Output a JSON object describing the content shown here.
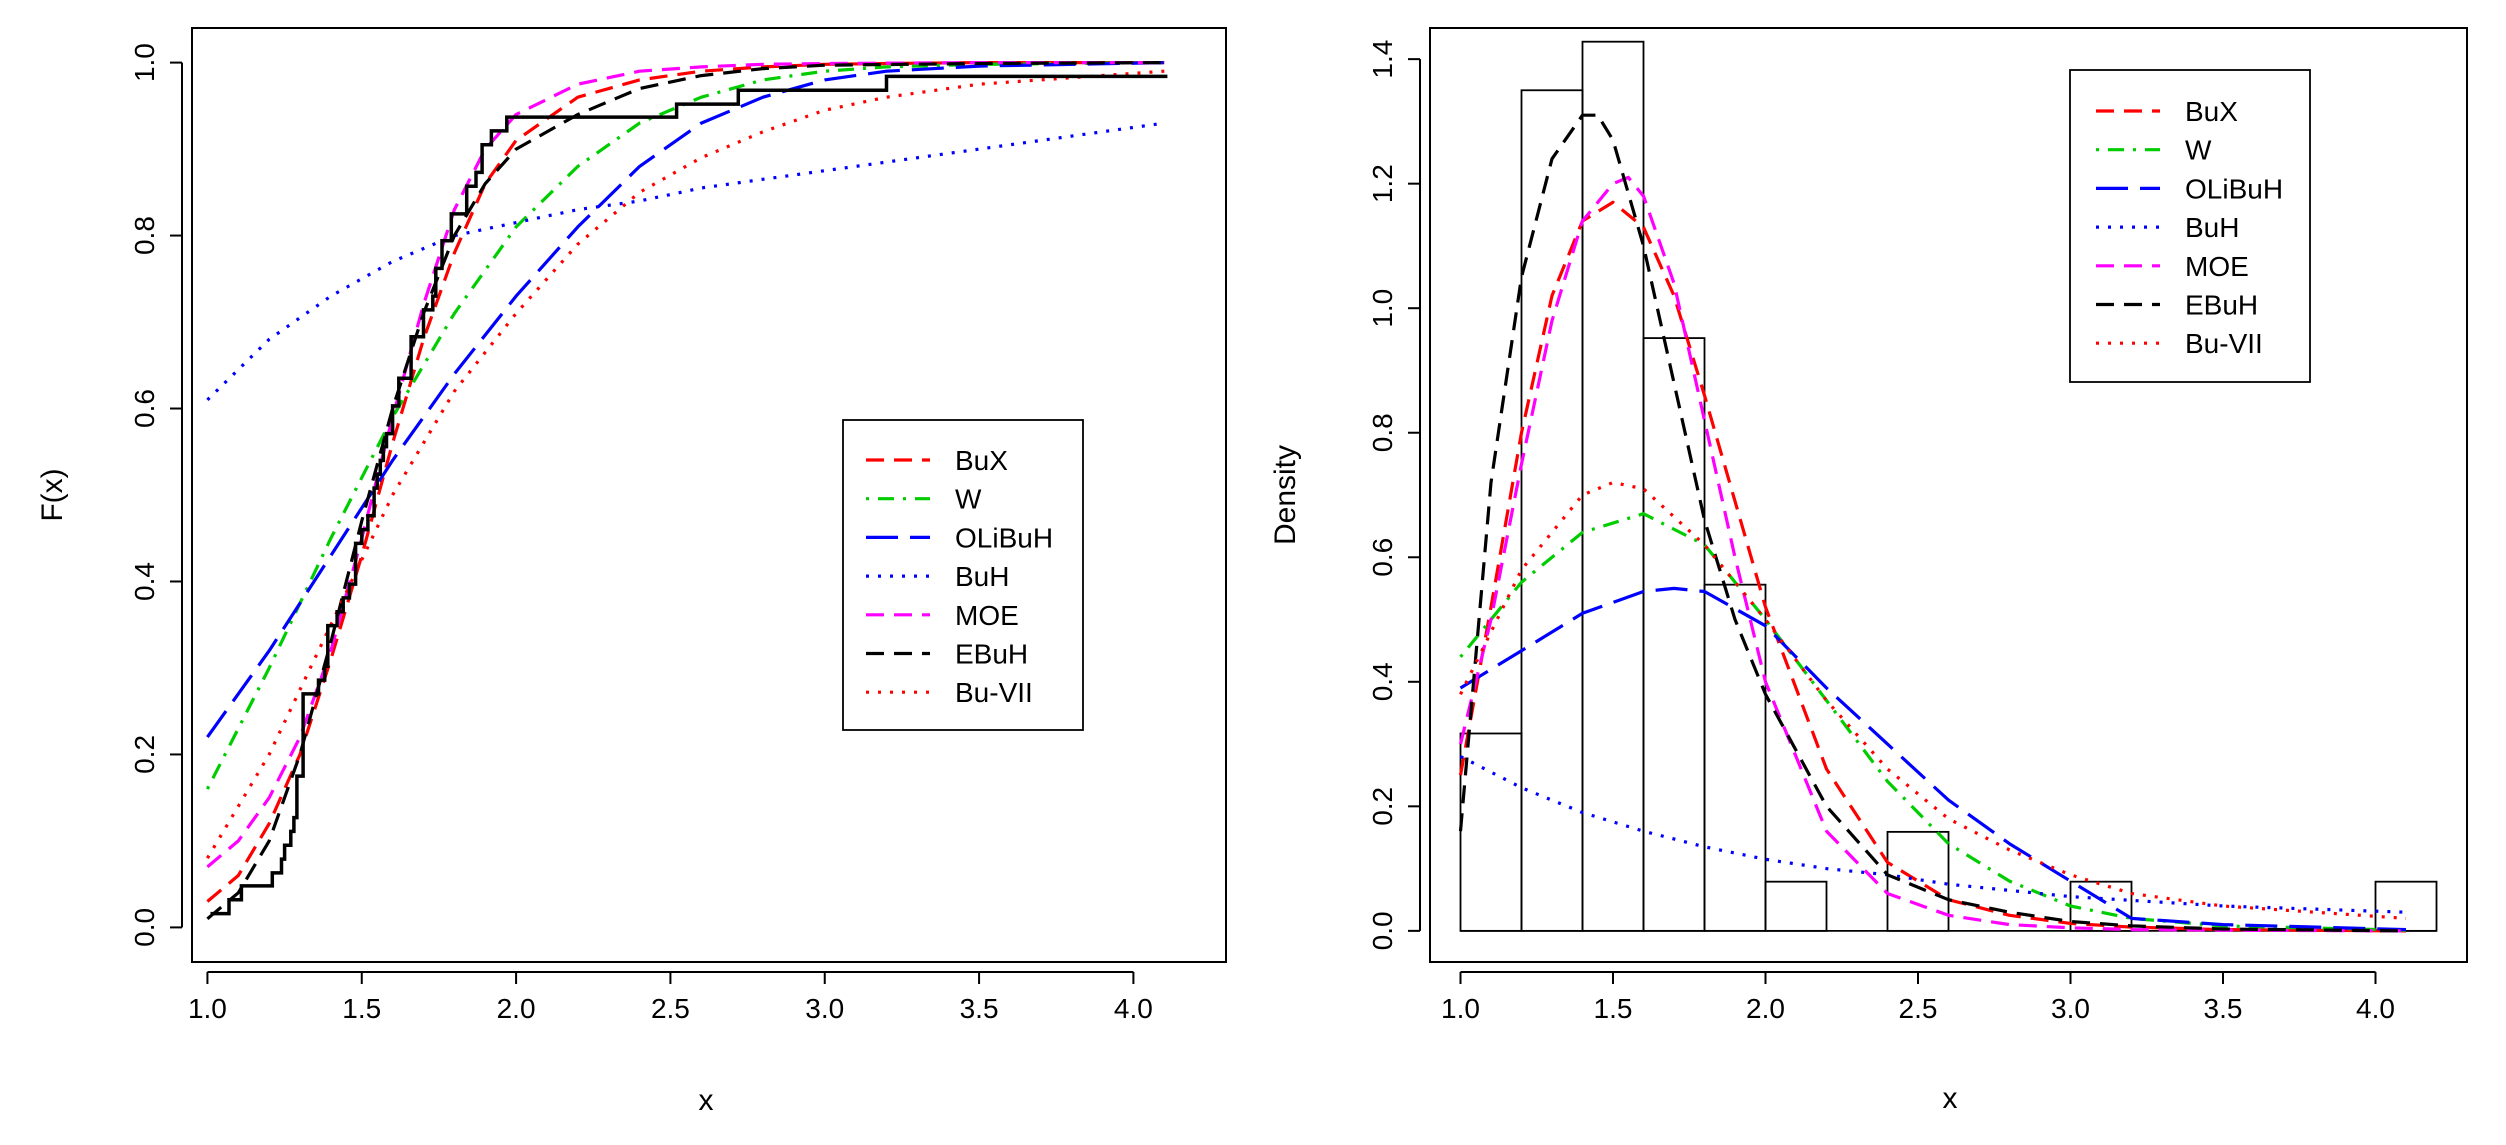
{
  "chart_data": [
    {
      "type": "line",
      "xlabel": "x",
      "ylabel": "F(x)",
      "xlim": [
        0.95,
        4.3
      ],
      "ylim": [
        -0.04,
        1.04
      ],
      "xticks": [
        "1.0",
        "1.5",
        "2.0",
        "2.5",
        "3.0",
        "3.5",
        "4.0"
      ],
      "yticks": [
        "0.0",
        "0.2",
        "0.4",
        "0.6",
        "0.8",
        "1.0"
      ],
      "legend_position": "right",
      "empirical_cdf": {
        "x": [
          1.01,
          1.07,
          1.11,
          1.21,
          1.24,
          1.25,
          1.27,
          1.28,
          1.29,
          1.31,
          1.36,
          1.38,
          1.39,
          1.42,
          1.44,
          1.46,
          1.48,
          1.5,
          1.52,
          1.54,
          1.55,
          1.56,
          1.57,
          1.58,
          1.6,
          1.62,
          1.66,
          1.7,
          1.73,
          1.74,
          1.76,
          1.79,
          1.84,
          1.87,
          1.89,
          1.92,
          1.97,
          2.01,
          2.52,
          2.72,
          3.2,
          4.11
        ],
        "y": [
          0.016,
          0.032,
          0.048,
          0.063,
          0.079,
          0.095,
          0.111,
          0.127,
          0.175,
          0.27,
          0.286,
          0.302,
          0.349,
          0.365,
          0.381,
          0.397,
          0.444,
          0.46,
          0.476,
          0.508,
          0.524,
          0.54,
          0.556,
          0.571,
          0.603,
          0.635,
          0.683,
          0.714,
          0.73,
          0.762,
          0.794,
          0.825,
          0.857,
          0.873,
          0.905,
          0.921,
          0.937,
          0.937,
          0.952,
          0.968,
          0.984,
          0.984
        ]
      },
      "series": [
        {
          "name": "BuX",
          "color": "#ff0000",
          "dash": "dashed",
          "x": [
            1.0,
            1.1,
            1.2,
            1.3,
            1.4,
            1.5,
            1.6,
            1.7,
            1.8,
            1.9,
            2.0,
            2.2,
            2.4,
            2.6,
            2.8,
            3.0,
            3.2,
            3.5,
            4.1
          ],
          "y": [
            0.03,
            0.06,
            0.12,
            0.2,
            0.31,
            0.43,
            0.56,
            0.68,
            0.78,
            0.86,
            0.91,
            0.96,
            0.98,
            0.99,
            0.995,
            0.998,
            0.999,
            1.0,
            1.0
          ]
        },
        {
          "name": "W",
          "color": "#00cd00",
          "dash": "dotdash",
          "x": [
            1.0,
            1.2,
            1.4,
            1.6,
            1.8,
            2.0,
            2.2,
            2.4,
            2.6,
            2.8,
            3.0,
            3.2,
            3.5,
            4.1
          ],
          "y": [
            0.16,
            0.3,
            0.45,
            0.59,
            0.71,
            0.81,
            0.88,
            0.93,
            0.96,
            0.98,
            0.99,
            0.995,
            0.998,
            1.0
          ]
        },
        {
          "name": "OLiBuH",
          "color": "#0000ff",
          "dash": "longdash",
          "x": [
            1.0,
            1.2,
            1.4,
            1.6,
            1.8,
            2.0,
            2.2,
            2.4,
            2.6,
            2.8,
            3.0,
            3.2,
            3.5,
            4.1
          ],
          "y": [
            0.22,
            0.32,
            0.43,
            0.54,
            0.64,
            0.73,
            0.81,
            0.88,
            0.93,
            0.96,
            0.98,
            0.99,
            0.996,
            1.0
          ]
        },
        {
          "name": "BuH",
          "color": "#0000ff",
          "dash": "dotted",
          "x": [
            1.0,
            1.2,
            1.4,
            1.6,
            1.8,
            2.0,
            2.2,
            2.4,
            2.6,
            2.8,
            3.0,
            3.5,
            4.1
          ],
          "y": [
            0.61,
            0.68,
            0.73,
            0.77,
            0.8,
            0.815,
            0.83,
            0.84,
            0.855,
            0.865,
            0.875,
            0.9,
            0.93
          ]
        },
        {
          "name": "MOE",
          "color": "#ff00ff",
          "dash": "dashed",
          "x": [
            1.0,
            1.1,
            1.2,
            1.3,
            1.4,
            1.5,
            1.6,
            1.7,
            1.8,
            1.9,
            2.0,
            2.2,
            2.4,
            2.6,
            2.8,
            3.0,
            3.5,
            4.1
          ],
          "y": [
            0.07,
            0.1,
            0.15,
            0.22,
            0.32,
            0.45,
            0.59,
            0.72,
            0.83,
            0.9,
            0.94,
            0.975,
            0.99,
            0.995,
            0.998,
            0.999,
            1.0,
            1.0
          ]
        },
        {
          "name": "EBuH",
          "color": "#000000",
          "dash": "dashed",
          "x": [
            1.0,
            1.1,
            1.2,
            1.3,
            1.4,
            1.5,
            1.6,
            1.7,
            1.8,
            1.9,
            2.0,
            2.2,
            2.4,
            2.6,
            2.8,
            3.0,
            3.5,
            4.1
          ],
          "y": [
            0.01,
            0.04,
            0.1,
            0.2,
            0.33,
            0.47,
            0.6,
            0.71,
            0.8,
            0.86,
            0.9,
            0.94,
            0.97,
            0.985,
            0.993,
            0.997,
            0.999,
            1.0
          ]
        },
        {
          "name": "Bu-VII",
          "color": "#ff0000",
          "dash": "dotted",
          "x": [
            1.0,
            1.2,
            1.4,
            1.6,
            1.8,
            2.0,
            2.2,
            2.4,
            2.6,
            2.8,
            3.0,
            3.2,
            3.5,
            4.1
          ],
          "y": [
            0.08,
            0.2,
            0.35,
            0.5,
            0.62,
            0.71,
            0.79,
            0.85,
            0.89,
            0.92,
            0.945,
            0.96,
            0.975,
            0.99
          ]
        }
      ]
    },
    {
      "type": "line",
      "xlabel": "x",
      "ylabel": "Density",
      "xlim": [
        0.9,
        4.3
      ],
      "ylim": [
        -0.05,
        1.45
      ],
      "xticks": [
        "1.0",
        "1.5",
        "2.0",
        "2.5",
        "3.0",
        "3.5",
        "4.0"
      ],
      "yticks": [
        "0.0",
        "0.2",
        "0.4",
        "0.6",
        "0.8",
        "1.0",
        "1.2",
        "1.4"
      ],
      "legend_position": "top-right",
      "histogram": {
        "bin_edges": [
          1.0,
          1.2,
          1.4,
          1.6,
          1.8,
          2.0,
          2.2,
          2.4,
          2.6,
          2.8,
          3.0,
          3.2,
          3.4,
          3.6,
          3.8,
          4.0,
          4.2
        ],
        "density": [
          0.317,
          1.35,
          1.428,
          0.952,
          0.556,
          0.079,
          0.0,
          0.159,
          0.0,
          0.0,
          0.079,
          0.0,
          0.0,
          0.0,
          0.0,
          0.079
        ]
      },
      "series": [
        {
          "name": "BuX",
          "color": "#ff0000",
          "dash": "dashed",
          "x": [
            1.0,
            1.1,
            1.2,
            1.3,
            1.4,
            1.5,
            1.6,
            1.7,
            1.8,
            1.9,
            2.0,
            2.2,
            2.4,
            2.6,
            2.8,
            3.0,
            3.2,
            3.5,
            4.1
          ],
          "y": [
            0.25,
            0.52,
            0.8,
            1.02,
            1.14,
            1.17,
            1.13,
            1.02,
            0.86,
            0.69,
            0.52,
            0.26,
            0.11,
            0.05,
            0.025,
            0.012,
            0.006,
            0.002,
            0.0
          ]
        },
        {
          "name": "W",
          "color": "#00cd00",
          "dash": "dotdash",
          "x": [
            1.0,
            1.2,
            1.4,
            1.6,
            1.8,
            2.0,
            2.2,
            2.4,
            2.6,
            2.8,
            3.0,
            3.2,
            3.5,
            4.1
          ],
          "y": [
            0.44,
            0.56,
            0.64,
            0.67,
            0.62,
            0.5,
            0.37,
            0.24,
            0.14,
            0.08,
            0.04,
            0.02,
            0.008,
            0.001
          ]
        },
        {
          "name": "OLiBuH",
          "color": "#0000ff",
          "dash": "longdash",
          "x": [
            1.0,
            1.2,
            1.4,
            1.6,
            1.7,
            1.8,
            2.0,
            2.2,
            2.4,
            2.6,
            2.8,
            3.0,
            3.2,
            3.5,
            4.1
          ],
          "y": [
            0.39,
            0.45,
            0.51,
            0.545,
            0.55,
            0.545,
            0.49,
            0.39,
            0.3,
            0.21,
            0.14,
            0.08,
            0.02,
            0.01,
            0.002
          ]
        },
        {
          "name": "BuH",
          "color": "#0000ff",
          "dash": "dotted",
          "x": [
            1.0,
            1.2,
            1.4,
            1.6,
            1.8,
            2.0,
            2.2,
            2.4,
            2.6,
            2.8,
            3.0,
            3.5,
            4.1
          ],
          "y": [
            0.28,
            0.23,
            0.19,
            0.16,
            0.135,
            0.115,
            0.1,
            0.09,
            0.075,
            0.065,
            0.055,
            0.04,
            0.03
          ]
        },
        {
          "name": "MOE",
          "color": "#ff00ff",
          "dash": "dashed",
          "x": [
            1.0,
            1.1,
            1.2,
            1.3,
            1.4,
            1.5,
            1.55,
            1.6,
            1.7,
            1.8,
            1.9,
            2.0,
            2.2,
            2.4,
            2.6,
            2.8,
            3.0,
            3.2,
            3.5,
            4.1
          ],
          "y": [
            0.3,
            0.5,
            0.75,
            0.98,
            1.14,
            1.2,
            1.21,
            1.18,
            1.04,
            0.82,
            0.6,
            0.4,
            0.16,
            0.06,
            0.025,
            0.01,
            0.005,
            0.002,
            0.001,
            0.0
          ]
        },
        {
          "name": "EBuH",
          "color": "#000000",
          "dash": "dashed",
          "x": [
            1.0,
            1.1,
            1.2,
            1.3,
            1.4,
            1.45,
            1.5,
            1.6,
            1.7,
            1.8,
            1.9,
            2.0,
            2.2,
            2.4,
            2.6,
            2.8,
            3.0,
            3.2,
            3.5,
            4.1
          ],
          "y": [
            0.16,
            0.72,
            1.05,
            1.24,
            1.31,
            1.31,
            1.27,
            1.1,
            0.88,
            0.66,
            0.5,
            0.38,
            0.2,
            0.09,
            0.05,
            0.03,
            0.015,
            0.008,
            0.003,
            0.0
          ]
        },
        {
          "name": "Bu-VII",
          "color": "#ff0000",
          "dash": "dotted",
          "x": [
            1.0,
            1.2,
            1.4,
            1.5,
            1.6,
            1.8,
            2.0,
            2.2,
            2.4,
            2.6,
            2.8,
            3.0,
            3.2,
            3.5,
            4.1
          ],
          "y": [
            0.38,
            0.58,
            0.7,
            0.72,
            0.71,
            0.62,
            0.5,
            0.37,
            0.26,
            0.18,
            0.13,
            0.09,
            0.06,
            0.04,
            0.02
          ]
        }
      ]
    }
  ]
}
